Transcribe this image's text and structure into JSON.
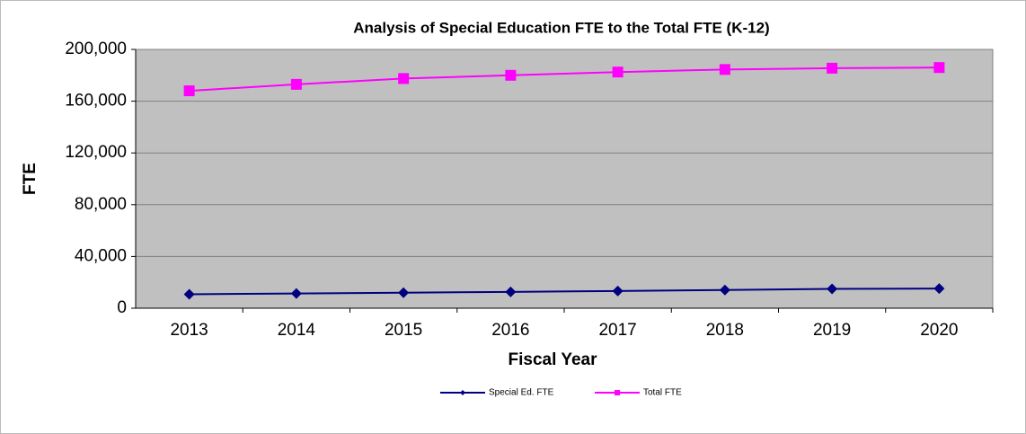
{
  "chart_data": {
    "type": "line",
    "title": "Analysis of Special Education FTE to the Total FTE  (K-12)",
    "x_label": "Fiscal Year",
    "y_label": "FTE",
    "categories": [
      "2013",
      "2014",
      "2015",
      "2016",
      "2017",
      "2018",
      "2019",
      "2020"
    ],
    "series": [
      {
        "name": "Special Ed. FTE",
        "color": "#000080",
        "marker": "diamond",
        "values": [
          10800,
          11400,
          12000,
          12600,
          13300,
          14100,
          14900,
          15200
        ]
      },
      {
        "name": "Total FTE",
        "color": "#ff00ff",
        "marker": "square",
        "values": [
          168000,
          173000,
          177500,
          180000,
          182500,
          184500,
          185500,
          186000
        ]
      }
    ],
    "ylim": [
      0,
      200000
    ],
    "yticks": [
      0,
      {
        "value": 40000,
        "label": "40,000"
      },
      {
        "value": 80000,
        "label": "80,000"
      },
      {
        "value": 120000,
        "label": "120,000"
      },
      {
        "value": 160000,
        "label": "160,000"
      },
      {
        "value": 200000,
        "label": "200,000"
      }
    ],
    "grid": true,
    "legend": "bottom"
  }
}
